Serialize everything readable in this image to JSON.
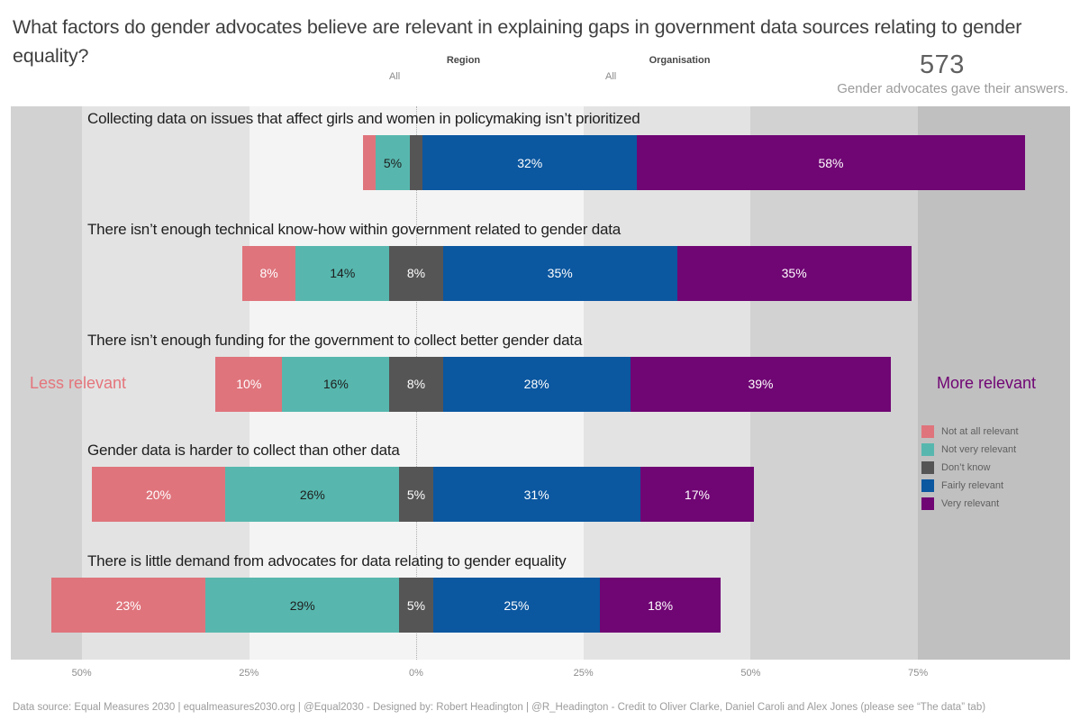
{
  "page": {
    "title": "What factors do gender advocates believe are relevant in explaining gaps in government data sources relating to gender equality?",
    "respondents_count": "573",
    "respondents_caption": "Gender advocates gave their answers.",
    "footer": "Data source: Equal Measures 2030 | equalmeasures2030.org | @Equal2030  -  Designed by: Robert Headington | @R_Headington  -  Credit to Oliver Clarke, Daniel Caroli and Alex Jones (please see “The data” tab)"
  },
  "filters": [
    {
      "label": "Region",
      "value": "All"
    },
    {
      "label": "Organisation",
      "value": "All"
    }
  ],
  "chart_data": {
    "type": "bar",
    "subtype": "diverging-stacked",
    "orientation": "horizontal",
    "title": "What factors do gender advocates believe are relevant in explaining gaps in government data sources relating to gender equality?",
    "series": [
      "Not at all relevant",
      "Not very relevant",
      "Don’t know",
      "Fairly relevant",
      "Very relevant"
    ],
    "series_colors": [
      "#df747c",
      "#57b7ae",
      "#555555",
      "#0b57a0",
      "#700574"
    ],
    "series_text_colors": [
      "#ffffff",
      "#1e1e1e",
      "#ffffff",
      "#ffffff",
      "#ffffff"
    ],
    "categories": [
      "Collecting data on issues that affect girls and women in policymaking isn’t prioritized",
      "There isn’t enough technical know-how within government related to gender data",
      "There isn’t enough funding for the government to collect better gender data",
      "Gender data is harder to collect than other data",
      "There is little demand from advocates for data relating to gender equality"
    ],
    "rows": [
      {
        "label": "Collecting data on issues that affect girls and women in policymaking isn’t prioritized",
        "values": [
          2,
          5,
          2,
          32,
          58
        ],
        "value_labels": [
          "",
          "5%",
          "",
          "32%",
          "58%"
        ]
      },
      {
        "label": "There isn’t enough technical know-how within government related to gender data",
        "values": [
          8,
          14,
          8,
          35,
          35
        ],
        "value_labels": [
          "8%",
          "14%",
          "8%",
          "35%",
          "35%"
        ]
      },
      {
        "label": "There isn’t enough funding for the government to collect better gender data",
        "values": [
          10,
          16,
          8,
          28,
          39
        ],
        "value_labels": [
          "10%",
          "16%",
          "8%",
          "28%",
          "39%"
        ]
      },
      {
        "label": "Gender data is harder to collect than other data",
        "values": [
          20,
          26,
          5,
          31,
          17
        ],
        "value_labels": [
          "20%",
          "26%",
          "5%",
          "31%",
          "17%"
        ]
      },
      {
        "label": "There is little demand from advocates for data relating to gender equality",
        "values": [
          23,
          29,
          5,
          25,
          18
        ],
        "value_labels": [
          "23%",
          "29%",
          "5%",
          "25%",
          "18%"
        ]
      }
    ],
    "axis": {
      "tick_labels": [
        "50%",
        "25%",
        "0%",
        "25%",
        "50%",
        "75%"
      ],
      "tick_values": [
        -50,
        -25,
        0,
        25,
        50,
        75
      ],
      "range": [
        -60,
        98
      ],
      "note": "Don’t know segment straddles the 0% line"
    },
    "annotations": {
      "left_label": "Less relevant",
      "right_label": "More relevant",
      "left_color": "#e4757c",
      "right_color": "#700574"
    },
    "legend": [
      {
        "label": "Not at all relevant",
        "color": "#df747c"
      },
      {
        "label": "Not very relevant",
        "color": "#57b7ae"
      },
      {
        "label": "Don’t know",
        "color": "#555555"
      },
      {
        "label": "Fairly relevant",
        "color": "#0b57a0"
      },
      {
        "label": "Very relevant",
        "color": "#700574"
      }
    ],
    "legend_position": "right-bottom"
  }
}
